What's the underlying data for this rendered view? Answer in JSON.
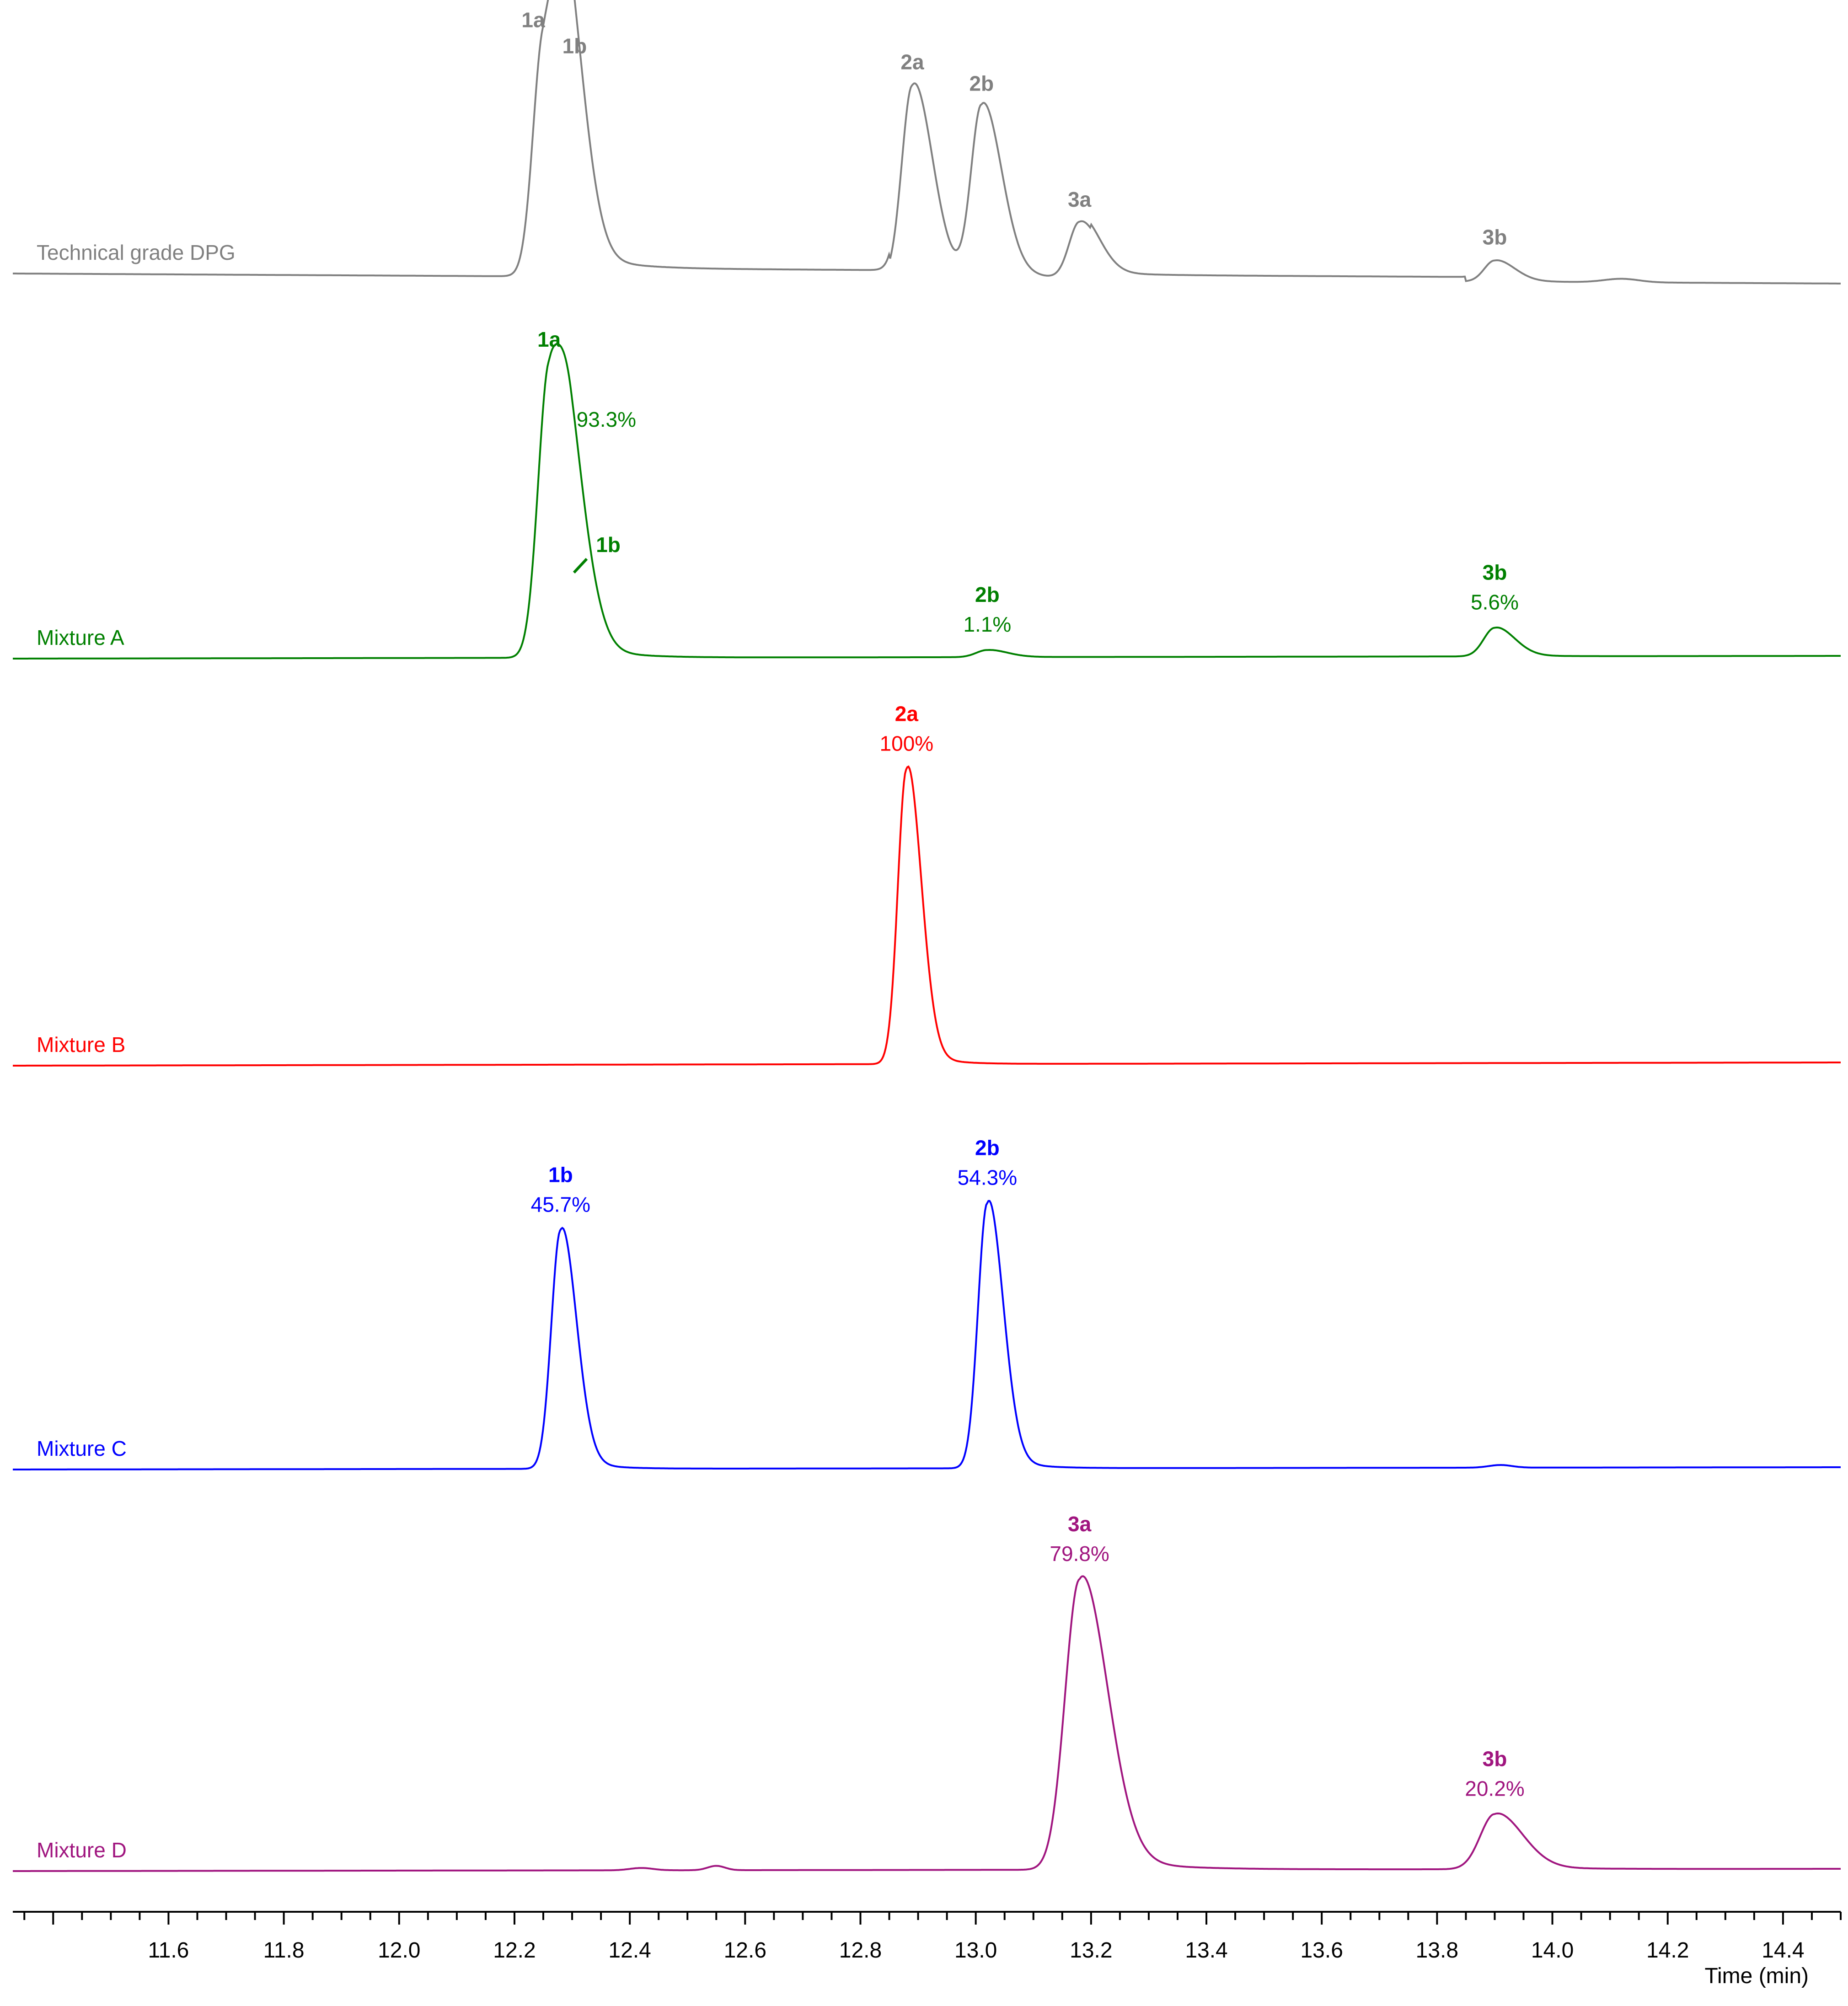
{
  "chart_data": {
    "type": "line",
    "title": "",
    "xlabel": "Time (min)",
    "ylabel": "",
    "xlim": [
      11.33,
      14.5
    ],
    "x_ticks": [
      "11.6",
      "11.8",
      "12.0",
      "12.2",
      "12.4",
      "12.6",
      "12.8",
      "13.0",
      "13.2",
      "13.4",
      "13.6",
      "13.8",
      "14.0",
      "14.2",
      "14.4"
    ],
    "x_tick_values": [
      11.6,
      11.8,
      12.0,
      12.2,
      12.4,
      12.6,
      12.8,
      13.0,
      13.2,
      13.4,
      13.6,
      13.8,
      14.0,
      14.2,
      14.4
    ],
    "minor_tick_step": 0.05,
    "traces": [
      {
        "name": "Technical grade DPG",
        "color": "#808080",
        "peaks": [
          {
            "id": "1a",
            "rt": 12.25,
            "height": 0.99,
            "pct": ""
          },
          {
            "id": "1b",
            "rt": 12.29,
            "height": 0.88,
            "pct": ""
          },
          {
            "id": "2a",
            "rt": 12.89,
            "height": 0.82,
            "pct": ""
          },
          {
            "id": "2b",
            "rt": 13.01,
            "height": 0.73,
            "pct": ""
          },
          {
            "id": "3a",
            "rt": 13.18,
            "height": 0.24,
            "pct": ""
          },
          {
            "id": "3b",
            "rt": 13.9,
            "height": 0.09,
            "pct": ""
          }
        ]
      },
      {
        "name": "Mixture A",
        "color": "#008000",
        "peaks": [
          {
            "id": "1a",
            "rt": 12.26,
            "height": 1.0,
            "pct": "93.3%"
          },
          {
            "id": "1b",
            "rt": 12.3,
            "height": 0.37,
            "pct": ""
          },
          {
            "id": "2b",
            "rt": 13.02,
            "height": 0.025,
            "pct": "1.1%"
          },
          {
            "id": "3b",
            "rt": 13.9,
            "height": 0.1,
            "pct": "5.6%"
          }
        ]
      },
      {
        "name": "Mixture B",
        "color": "#ff0000",
        "peaks": [
          {
            "id": "2a",
            "rt": 12.88,
            "height": 1.0,
            "pct": "100%"
          }
        ]
      },
      {
        "name": "Mixture C",
        "color": "#0000ff",
        "peaks": [
          {
            "id": "1b",
            "rt": 12.28,
            "height": 0.9,
            "pct": "45.7%"
          },
          {
            "id": "2b",
            "rt": 13.02,
            "height": 1.0,
            "pct": "54.3%"
          }
        ]
      },
      {
        "name": "Mixture D",
        "color": "#a0157f",
        "peaks": [
          {
            "id": "3a",
            "rt": 13.18,
            "height": 1.0,
            "pct": "79.8%"
          },
          {
            "id": "3b",
            "rt": 13.9,
            "height": 0.19,
            "pct": "20.2%"
          }
        ]
      }
    ]
  }
}
